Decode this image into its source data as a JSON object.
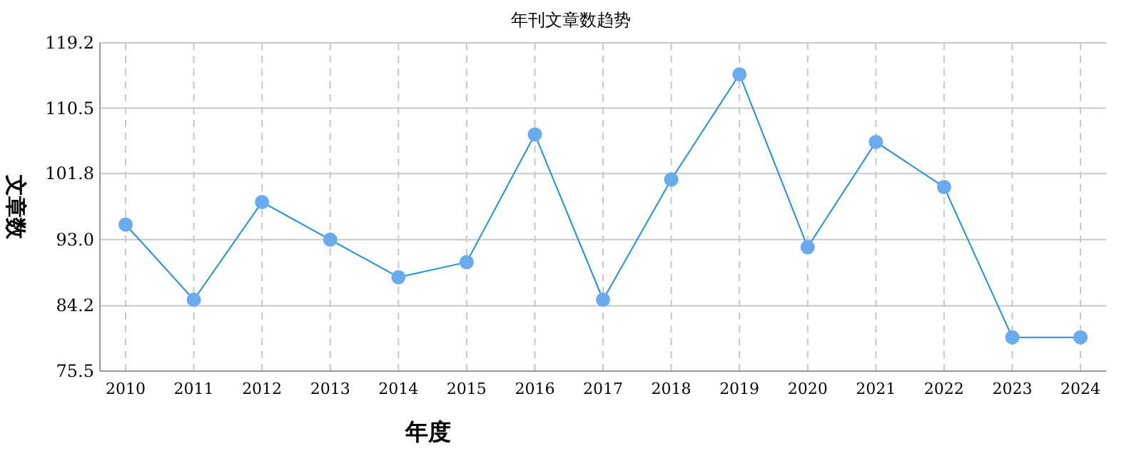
{
  "chart_data": {
    "type": "line",
    "title": "年刊文章数趋势",
    "xlabel": "年度",
    "ylabel": "文章数",
    "categories": [
      "2010",
      "2011",
      "2012",
      "2013",
      "2014",
      "2015",
      "2016",
      "2017",
      "2018",
      "2019",
      "2020",
      "2021",
      "2022",
      "2023",
      "2024"
    ],
    "series": [
      {
        "color": "#1e90e8",
        "values": [
          95,
          85,
          98,
          93,
          88,
          90,
          107,
          85,
          101,
          115,
          92,
          106,
          100,
          80,
          80
        ]
      }
    ],
    "ylim": [
      75.5,
      119.2
    ],
    "yticks": [
      {
        "value": 75.5,
        "label": "75.5"
      },
      {
        "value": 84.2,
        "label": "84.2"
      },
      {
        "value": 93.0,
        "label": "93.0"
      },
      {
        "value": 101.8,
        "label": "101.8"
      },
      {
        "value": 110.5,
        "label": "110.5"
      },
      {
        "value": 119.2,
        "label": "119.2"
      }
    ],
    "grid": true,
    "marker": "circle",
    "line_style": "solid"
  }
}
